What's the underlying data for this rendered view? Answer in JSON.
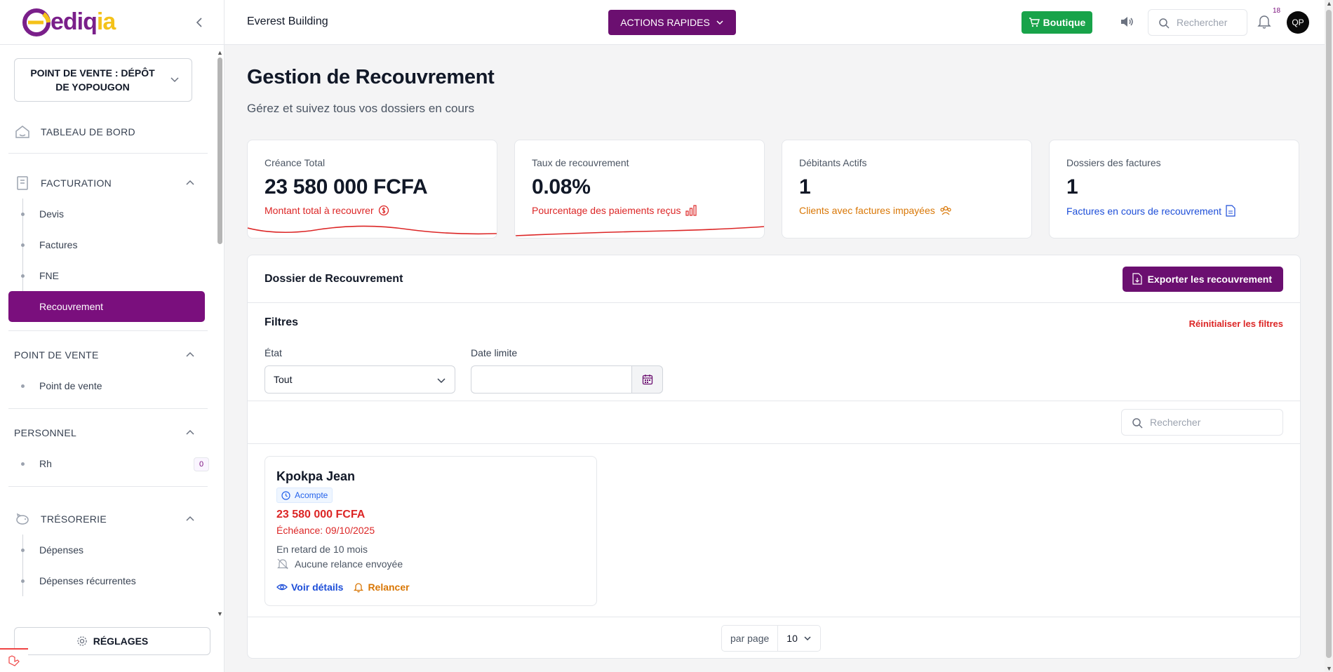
{
  "brand": {
    "logo_text_a": "ediq",
    "logo_text_b": "ia"
  },
  "colors": {
    "primary": "#6b0f70",
    "success": "#18a34a",
    "danger": "#dc2626",
    "warning": "#d97706",
    "info": "#1d4ed8"
  },
  "sidebar": {
    "point_of_sale_select": "POINT DE VENTE : DÉPÔT DE YOPOUGON",
    "dashboard": "TABLEAU DE BORD",
    "sections": {
      "facturation": {
        "title": "FACTURATION",
        "items": [
          "Devis",
          "Factures",
          "FNE",
          "Recouvrement"
        ],
        "active": "Recouvrement"
      },
      "point_de_vente": {
        "title": "POINT DE VENTE",
        "items": [
          "Point de vente"
        ]
      },
      "personnel": {
        "title": "PERSONNEL",
        "items": [
          "Rh"
        ],
        "rh_badge": "0"
      },
      "tresorerie": {
        "title": "TRÉSORERIE",
        "items": [
          "Dépenses",
          "Dépenses récurrentes"
        ]
      }
    },
    "settings_label": "RÉGLAGES"
  },
  "topbar": {
    "org_name": "Everest Building",
    "quick_actions": "ACTIONS RAPIDES",
    "boutique": "Boutique",
    "search_placeholder": "Rechercher",
    "notifications_count": "18",
    "avatar_initials": "QP"
  },
  "page": {
    "title": "Gestion de Recouvrement",
    "subtitle": "Gérez et suivez tous vos dossiers en cours"
  },
  "stats": [
    {
      "label": "Créance Total",
      "value": "23 580 000 FCFA",
      "foot": "Montant total à recouvrer",
      "icon": "dollar-circle-icon",
      "color": "#dc2626"
    },
    {
      "label": "Taux de recouvrement",
      "value": "0.08%",
      "foot": "Pourcentage des paiements reçus",
      "icon": "bar-chart-icon",
      "color": "#dc2626"
    },
    {
      "label": "Débitants Actifs",
      "value": "1",
      "foot": "Clients avec factures impayées",
      "icon": "users-icon",
      "color": "#d97706"
    },
    {
      "label": "Dossiers des factures",
      "value": "1",
      "foot": "Factures en cours de recouvrement",
      "icon": "file-icon",
      "color": "#1d4ed8"
    }
  ],
  "panel": {
    "title": "Dossier de Recouvrement",
    "export_label": "Exporter les recouvrement",
    "filters_title": "Filtres",
    "reset_filters": "Réinitialiser les filtres",
    "state_label": "État",
    "state_value": "Tout",
    "due_date_label": "Date limite",
    "due_date_value": "",
    "search_placeholder": "Rechercher"
  },
  "records": [
    {
      "client": "Kpokpa Jean",
      "status": "Acompte",
      "amount": "23 580 000 FCFA",
      "due": "Échéance: 09/10/2025",
      "late": "En retard de 10 mois",
      "relance_status": "Aucune relance envoyée",
      "view_label": "Voir détails",
      "relance_label": "Relancer"
    }
  ],
  "pagination": {
    "per_page_label": "par page",
    "per_page_value": "10"
  }
}
